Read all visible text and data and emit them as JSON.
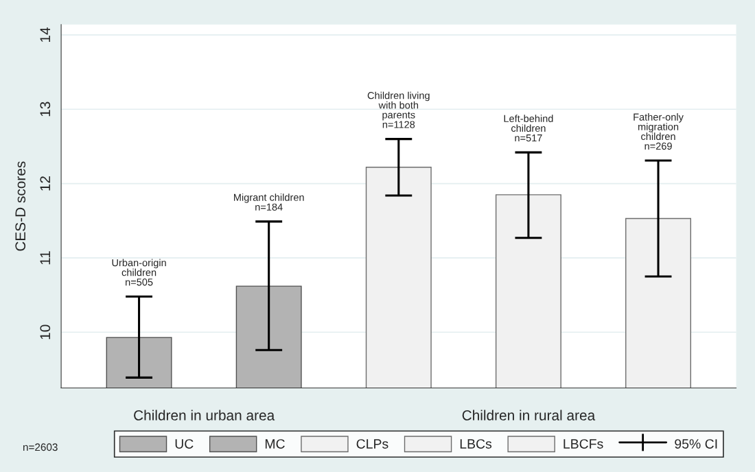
{
  "chart_data": {
    "type": "bar",
    "ylabel": "CES-D scores",
    "categories": [
      null,
      null,
      null,
      null,
      null
    ],
    "series": [
      {
        "name": "UC",
        "color": "#b3b3b3",
        "values": [
          9.93,
          null,
          null,
          null,
          null
        ],
        "errors": [
          [
            9.39,
            10.48
          ],
          null,
          null,
          null,
          null
        ]
      },
      {
        "name": "MC",
        "color": "#b3b3b3",
        "values": [
          null,
          10.62,
          null,
          null,
          null
        ],
        "errors": [
          null,
          [
            9.76,
            11.49
          ],
          null,
          null,
          null
        ]
      },
      {
        "name": "CLPs",
        "color": "#f1f1f1",
        "values": [
          null,
          null,
          12.22,
          null,
          null
        ],
        "errors": [
          null,
          null,
          [
            11.84,
            12.6
          ],
          null,
          null
        ]
      },
      {
        "name": "LBCs",
        "color": "#f1f1f1",
        "values": [
          null,
          null,
          null,
          11.85,
          null
        ],
        "errors": [
          null,
          null,
          null,
          [
            11.27,
            12.42
          ],
          null
        ]
      },
      {
        "name": "LBCFs",
        "color": "#f1f1f1",
        "values": [
          null,
          null,
          null,
          null,
          11.53
        ],
        "errors": [
          null,
          null,
          null,
          null,
          [
            10.75,
            12.31
          ]
        ]
      }
    ],
    "ylim": [
      9.25,
      14.14
    ],
    "yticks": [
      10,
      11,
      12,
      13,
      14
    ],
    "grid": "y",
    "legend": "bottom",
    "annotations": [
      "Children in urban area",
      "Children in rural area",
      "n=2603",
      "95% CI",
      "Urban-origin\nchildren\nn=505",
      "Migrant children\nn=184",
      "Children living\nwith both\nparents\nn=1128",
      "Left-behind\nchildren\nn=517",
      "Father-only\nmigration\nchildren\nn=269"
    ]
  }
}
